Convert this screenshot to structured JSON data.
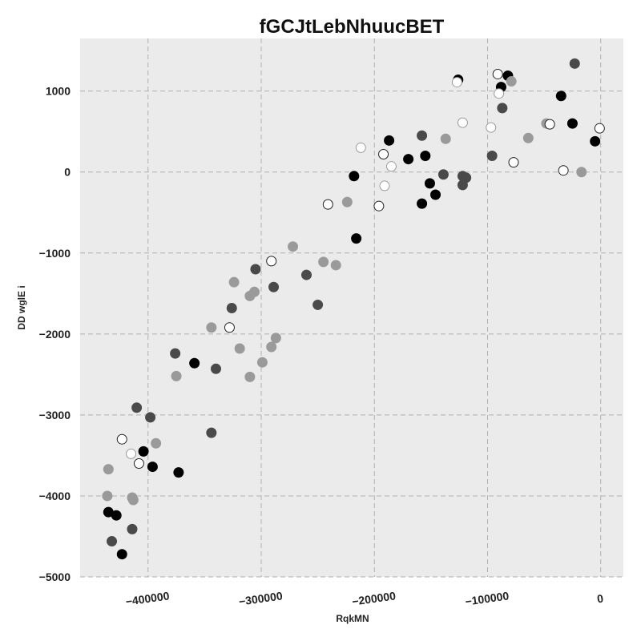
{
  "chart_data": {
    "type": "scatter",
    "title": "fGCJtLebNhuucBET",
    "xlabel": "RqkMN",
    "ylabel": "DD wglE i",
    "xlim": [
      -460000,
      20000
    ],
    "ylim": [
      -5000,
      1650
    ],
    "grid": true,
    "xticks": [
      -400000,
      -300000,
      -200000,
      -100000,
      0
    ],
    "xtick_labels": [
      "−400000",
      "−300000",
      "−200000",
      "−100000",
      "0"
    ],
    "yticks": [
      1000,
      0,
      -1000,
      -2000,
      -3000,
      -4000,
      -5000
    ],
    "ytick_labels": [
      "1000",
      "0",
      "−1000",
      "−2000",
      "−3000",
      "−4000",
      "−5000"
    ],
    "colors": {
      "background": "#ebebeb",
      "black": "#000000",
      "dark_gray": "#4a4a4a",
      "light_gray": "#9a9a9a"
    },
    "series": [
      {
        "style": "black",
        "points": [
          [
            -435000,
            -4200
          ],
          [
            -428000,
            -4240
          ],
          [
            -423000,
            -4720
          ],
          [
            -404000,
            -3450
          ],
          [
            -396000,
            -3640
          ],
          [
            -373000,
            -3710
          ],
          [
            -359000,
            -2360
          ],
          [
            -218000,
            -50
          ],
          [
            -216000,
            -820
          ],
          [
            -187000,
            390
          ],
          [
            -170000,
            160
          ],
          [
            -158000,
            -390
          ],
          [
            -155000,
            200
          ],
          [
            -151000,
            -140
          ],
          [
            -146000,
            -280
          ],
          [
            -126000,
            1140
          ],
          [
            -88000,
            1050
          ],
          [
            -82000,
            1190
          ],
          [
            -35000,
            940
          ],
          [
            -25000,
            600
          ],
          [
            -5000,
            380
          ]
        ]
      },
      {
        "style": "dark_gray",
        "points": [
          [
            -432000,
            -4560
          ],
          [
            -414000,
            -4410
          ],
          [
            -410000,
            -2910
          ],
          [
            -398000,
            -3030
          ],
          [
            -376000,
            -2240
          ],
          [
            -344000,
            -3220
          ],
          [
            -340000,
            -2430
          ],
          [
            -326000,
            -1680
          ],
          [
            -305000,
            -1200
          ],
          [
            -289000,
            -1420
          ],
          [
            -260000,
            -1270
          ],
          [
            -250000,
            -1640
          ],
          [
            -158000,
            450
          ],
          [
            -139000,
            -30
          ],
          [
            -122000,
            -50
          ],
          [
            -119000,
            -70
          ],
          [
            -122000,
            -160
          ],
          [
            -96000,
            200
          ],
          [
            -87000,
            790
          ],
          [
            -23000,
            1340
          ]
        ]
      },
      {
        "style": "light_gray",
        "points": [
          [
            -435000,
            -3670
          ],
          [
            -436000,
            -4000
          ],
          [
            -414000,
            -4020
          ],
          [
            -413000,
            -4050
          ],
          [
            -393000,
            -3350
          ],
          [
            -375000,
            -2520
          ],
          [
            -344000,
            -1920
          ],
          [
            -324000,
            -1360
          ],
          [
            -319000,
            -2180
          ],
          [
            -310000,
            -2530
          ],
          [
            -310000,
            -1530
          ],
          [
            -306000,
            -1480
          ],
          [
            -299000,
            -2350
          ],
          [
            -291000,
            -2160
          ],
          [
            -287000,
            -2050
          ],
          [
            -272000,
            -920
          ],
          [
            -245000,
            -1110
          ],
          [
            -234000,
            -1150
          ],
          [
            -224000,
            -370
          ],
          [
            -137000,
            410
          ],
          [
            -79000,
            1120
          ],
          [
            -64000,
            420
          ],
          [
            -48000,
            600
          ],
          [
            -17000,
            0
          ]
        ]
      },
      {
        "style": "open_dark",
        "points": [
          [
            -423000,
            -3300
          ],
          [
            -408000,
            -3600
          ],
          [
            -328000,
            -1920
          ],
          [
            -291000,
            -1100
          ],
          [
            -241000,
            -400
          ],
          [
            -196000,
            -420
          ],
          [
            -192000,
            220
          ],
          [
            -91000,
            1210
          ],
          [
            -77000,
            120
          ],
          [
            -45000,
            590
          ],
          [
            -33000,
            20
          ],
          [
            -1000,
            540
          ]
        ]
      },
      {
        "style": "open_light",
        "points": [
          [
            -415000,
            -3480
          ],
          [
            -212000,
            300
          ],
          [
            -191000,
            -170
          ],
          [
            -185000,
            70
          ],
          [
            -127000,
            1110
          ],
          [
            -122000,
            610
          ],
          [
            -97000,
            550
          ],
          [
            -90000,
            970
          ]
        ]
      }
    ]
  }
}
